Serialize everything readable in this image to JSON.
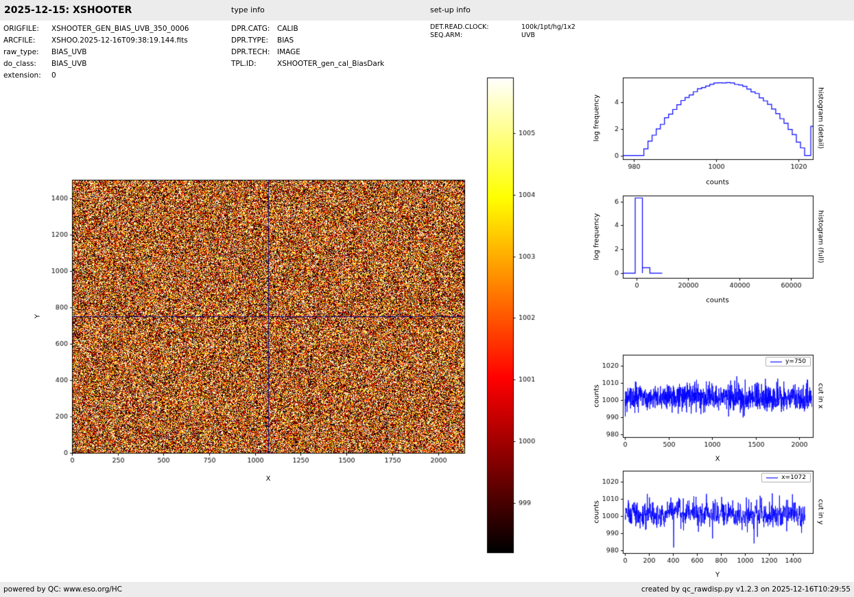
{
  "header": {
    "title": "2025-12-15: XSHOOTER",
    "type_info_label": "type info",
    "setup_info_label": "set-up info"
  },
  "file_info": {
    "rows": [
      {
        "label": "ORIGFILE:",
        "value": "XSHOOTER_GEN_BIAS_UVB_350_0006"
      },
      {
        "label": "ARCFILE:",
        "value": "XSHOO.2025-12-16T09:38:19.144.fits"
      },
      {
        "label": "raw_type:",
        "value": "BIAS_UVB"
      },
      {
        "label": "do_class:",
        "value": "BIAS_UVB"
      },
      {
        "label": "extension:",
        "value": "0"
      }
    ]
  },
  "type_info": {
    "rows": [
      {
        "label": "DPR.CATG:",
        "value": "CALIB"
      },
      {
        "label": "DPR.TYPE:",
        "value": "BIAS"
      },
      {
        "label": "DPR.TECH:",
        "value": "IMAGE"
      },
      {
        "label": "TPL.ID:",
        "value": "XSHOOTER_gen_cal_BiasDark"
      }
    ]
  },
  "setup_info": {
    "rows": [
      {
        "label": "DET.READ.CLOCK:",
        "value": "100k/1pt/hg/1x2"
      },
      {
        "label": "SEQ.ARM:",
        "value": "UVB"
      }
    ]
  },
  "footer": {
    "left": "powered by QC: www.eso.org/HC",
    "right": "created by qc_rawdisp.py v1.2.3 on 2025-12-16T10:29:55"
  },
  "chart_data": [
    {
      "id": "bias_image",
      "type": "heatmap",
      "xlabel": "X",
      "ylabel": "Y",
      "xlim": [
        0,
        2144
      ],
      "ylim": [
        0,
        1500
      ],
      "xticks": [
        0,
        250,
        500,
        750,
        1000,
        1250,
        1500,
        1750,
        2000
      ],
      "yticks": [
        0,
        200,
        400,
        600,
        800,
        1000,
        1200,
        1400
      ],
      "colormap": "hot",
      "value_mean": 1001.5,
      "value_sigma": 4.0,
      "crosshair_x": 1072,
      "crosshair_y": 750,
      "crosshair_color": "#00008b",
      "colorbar": {
        "vmin": 998.2,
        "vmax": 1005.9,
        "ticks": [
          999,
          1000,
          1001,
          1002,
          1003,
          1004,
          1005
        ]
      }
    },
    {
      "id": "histogram_detail",
      "type": "line",
      "right_label": "histogram (detail)",
      "xlabel": "counts",
      "ylabel": "log frequency",
      "xlim": [
        977.4,
        1023.5
      ],
      "ylim": [
        -0.28,
        5.88
      ],
      "xticks": [
        980,
        1000,
        1020
      ],
      "yticks": [
        0,
        2,
        4
      ],
      "line_color": "#0000ff",
      "curve": {
        "shape": "gaussian-in-log",
        "mean_counts": 1002,
        "peak_log_frequency": 5.5,
        "zero_half_width": 20,
        "overflow_spike": {
          "x": 1023,
          "height": 2.2
        }
      }
    },
    {
      "id": "histogram_full",
      "type": "line",
      "right_label": "histogram (full)",
      "xlabel": "counts",
      "ylabel": "log frequency",
      "xlim": [
        -5300,
        68500
      ],
      "ylim": [
        -0.4,
        6.5
      ],
      "xticks": [
        0,
        20000,
        40000,
        60000
      ],
      "yticks": [
        0,
        2,
        4,
        6
      ],
      "line_color": "#0000ff",
      "bins": [
        {
          "x0": -500,
          "x1": 2300,
          "h": 6.3
        },
        {
          "x0": 2300,
          "x1": 5200,
          "h": 0.45
        }
      ],
      "baseline_end": 10000
    },
    {
      "id": "cut_in_x",
      "type": "line",
      "right_label": "cut in x",
      "legend": "y=750",
      "xlabel": "X",
      "ylabel": "counts",
      "xlim": [
        -24,
        2157
      ],
      "ylim": [
        978.4,
        1026.4
      ],
      "xticks": [
        0,
        500,
        1000,
        1500,
        2000
      ],
      "yticks": [
        980,
        990,
        1000,
        1010,
        1020
      ],
      "line_color": "#0000ff",
      "signal": {
        "n": 2144,
        "mean": 1001.3,
        "sigma": 4.0
      }
    },
    {
      "id": "cut_in_y",
      "type": "line",
      "right_label": "cut in y",
      "legend": "x=1072",
      "xlabel": "Y",
      "ylabel": "counts",
      "xlim": [
        -18,
        1566
      ],
      "ylim": [
        978.4,
        1026.4
      ],
      "xticks": [
        0,
        200,
        400,
        600,
        800,
        1000,
        1200,
        1400
      ],
      "yticks": [
        980,
        990,
        1000,
        1010,
        1020
      ],
      "line_color": "#0000ff",
      "signal": {
        "n": 1500,
        "mean": 1001.3,
        "sigma": 4.0
      }
    }
  ]
}
